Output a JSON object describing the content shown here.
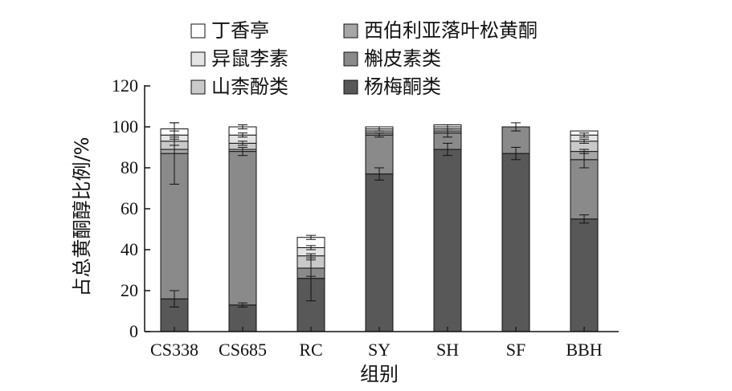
{
  "chart_data": {
    "type": "bar",
    "stacked": true,
    "categories": [
      "CS338",
      "CS685",
      "RC",
      "SY",
      "SH",
      "SF",
      "BBH"
    ],
    "xlabel": "组别",
    "ylabel": "占总黄酮醇比例/%",
    "ylim": [
      0,
      120
    ],
    "yticks": [
      0,
      20,
      40,
      60,
      80,
      100,
      120
    ],
    "grid": false,
    "legend_position": "top",
    "series": [
      {
        "name": "杨梅酮类",
        "color": "#585858",
        "values": [
          16,
          13,
          26,
          77,
          89,
          87,
          55
        ],
        "errors": [
          4,
          1,
          11,
          3,
          3,
          3,
          2
        ]
      },
      {
        "name": "槲皮素类",
        "color": "#8a8a8a",
        "values": [
          71,
          75,
          5,
          19,
          8,
          13,
          29
        ],
        "errors": [
          15,
          2,
          4,
          1,
          2,
          2,
          4
        ]
      },
      {
        "name": "西伯利亚落叶松黄酮",
        "color": "#a6a6a6",
        "values": [
          2,
          1,
          0,
          1,
          1,
          0,
          4
        ],
        "errors": [
          0,
          0,
          0,
          0,
          0,
          0,
          1
        ]
      },
      {
        "name": "山柰酚类",
        "color": "#c9c9c9",
        "values": [
          4,
          3,
          6,
          1,
          1,
          0,
          5
        ],
        "errors": [
          2,
          1,
          1,
          0,
          0,
          2,
          1
        ]
      },
      {
        "name": "异鼠李素",
        "color": "#e4e4e4",
        "values": [
          3,
          4,
          4,
          1,
          1,
          0,
          3
        ],
        "errors": [
          2,
          1,
          1,
          1,
          1,
          0,
          1
        ]
      },
      {
        "name": "丁香亭",
        "color": "#ffffff",
        "values": [
          3,
          4,
          5,
          1,
          1,
          0,
          2
        ],
        "errors": [
          3,
          1,
          1,
          0,
          0,
          0,
          0
        ]
      }
    ]
  }
}
